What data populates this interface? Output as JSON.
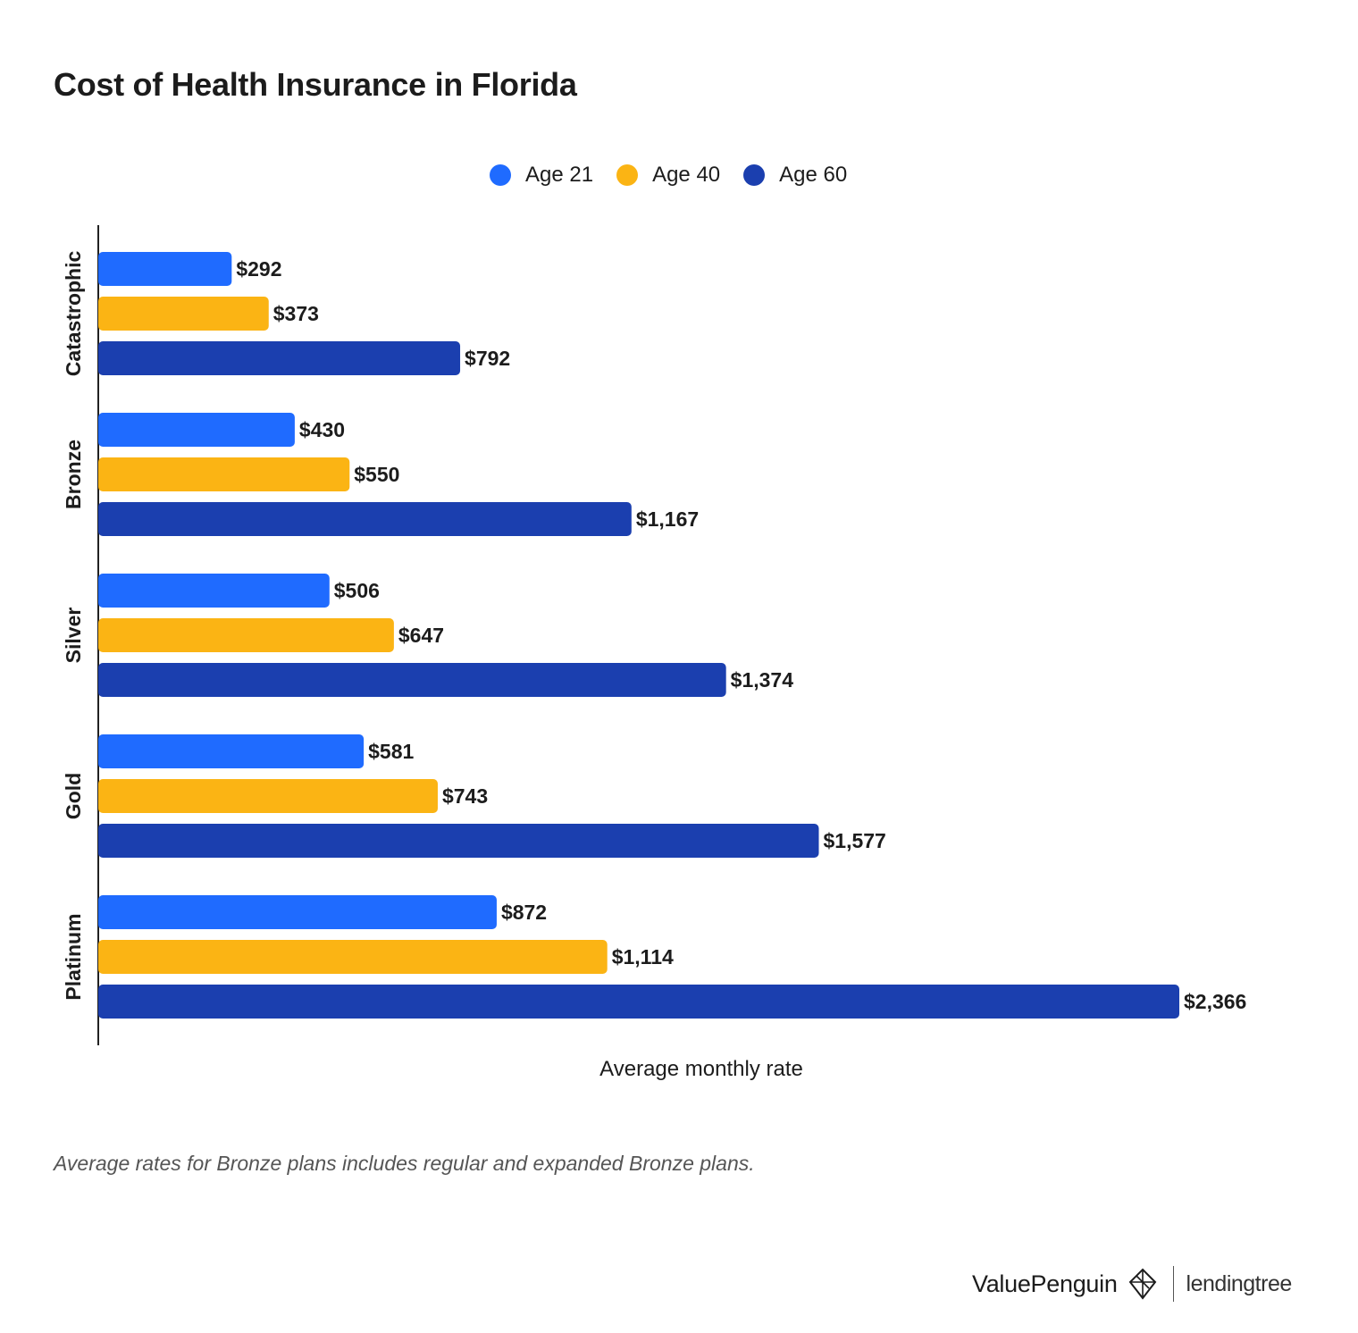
{
  "title": "Cost of Health Insurance in Florida",
  "legend": [
    {
      "label": "Age 21",
      "color": "#1f6bff"
    },
    {
      "label": "Age 40",
      "color": "#fbb414"
    },
    {
      "label": "Age 60",
      "color": "#1b3faf"
    }
  ],
  "chart_data": {
    "type": "bar",
    "orientation": "horizontal",
    "title": "Cost of Health Insurance in Florida",
    "xlabel": "Average monthly rate",
    "ylabel": "",
    "categories": [
      "Catastrophic",
      "Bronze",
      "Silver",
      "Gold",
      "Platinum"
    ],
    "series": [
      {
        "name": "Age 21",
        "color": "#1f6bff",
        "values": [
          292,
          430,
          506,
          581,
          872
        ],
        "labels": [
          "$292",
          "$430",
          "$506",
          "$581",
          "$872"
        ]
      },
      {
        "name": "Age 40",
        "color": "#fbb414",
        "values": [
          373,
          550,
          647,
          743,
          1114
        ],
        "labels": [
          "$373",
          "$550",
          "$647",
          "$743",
          "$1,114"
        ]
      },
      {
        "name": "Age 60",
        "color": "#1b3faf",
        "values": [
          792,
          1167,
          1374,
          1577,
          2366
        ],
        "labels": [
          "$792",
          "$1,167",
          "$1,374",
          "$1,577",
          "$2,366"
        ]
      }
    ],
    "xlim": [
      0,
      2366
    ],
    "grid": false,
    "legend_position": "top-center"
  },
  "footnote": "Average rates for Bronze plans includes regular and expanded Bronze plans.",
  "brand": {
    "valuepenguin": "ValuePenguin",
    "lendingtree": "lendingtree"
  }
}
